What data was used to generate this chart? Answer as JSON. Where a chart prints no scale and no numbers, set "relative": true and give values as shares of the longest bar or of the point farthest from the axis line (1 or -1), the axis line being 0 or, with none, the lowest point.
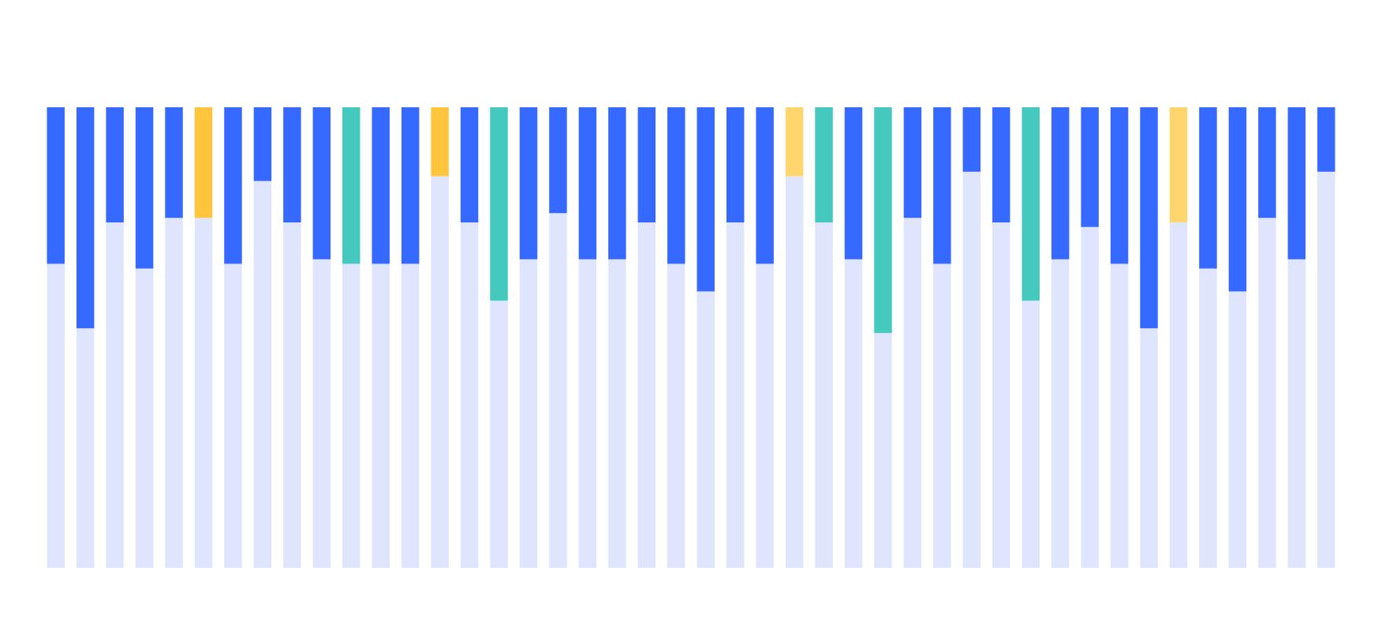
{
  "chart_data": {
    "type": "bar",
    "relative": true,
    "stacked": true,
    "grid": false,
    "categories": [
      null,
      null,
      null,
      null,
      null,
      null,
      null,
      null,
      null,
      null,
      null,
      null,
      null,
      null,
      null,
      null,
      null,
      null,
      null,
      null,
      null,
      null,
      null,
      null,
      null,
      null,
      null,
      null,
      null,
      null,
      null,
      null,
      null,
      null,
      null,
      null,
      null,
      null,
      null,
      null,
      null,
      null,
      null,
      null
    ],
    "series": [
      {
        "color": "#dfe5fd",
        "values": [
          0.66,
          0.52,
          0.75,
          0.65,
          0.76,
          0.76,
          0.66,
          0.84,
          0.75,
          0.67,
          0.66,
          0.66,
          0.66,
          0.85,
          0.75,
          0.58,
          0.67,
          0.77,
          0.67,
          0.67,
          0.75,
          0.66,
          0.6,
          0.75,
          0.66,
          0.85,
          0.75,
          0.67,
          0.51,
          0.76,
          0.66,
          0.86,
          0.75,
          0.58,
          0.67,
          0.74,
          0.66,
          0.52,
          0.75,
          0.65,
          0.6,
          0.76,
          0.67,
          0.86
        ]
      },
      {
        "colors": [
          "#3669ff",
          "#3669ff",
          "#3669ff",
          "#3669ff",
          "#3669ff",
          "#ffc53d",
          "#3669ff",
          "#3669ff",
          "#3669ff",
          "#3669ff",
          "#45c9bf",
          "#3669ff",
          "#3669ff",
          "#ffc53d",
          "#3669ff",
          "#45c9bf",
          "#3669ff",
          "#3669ff",
          "#3669ff",
          "#3669ff",
          "#3669ff",
          "#3669ff",
          "#3669ff",
          "#3669ff",
          "#3669ff",
          "#ffd56e",
          "#45c9bf",
          "#3669ff",
          "#45c9bf",
          "#3669ff",
          "#3669ff",
          "#3669ff",
          "#3669ff",
          "#45c9bf",
          "#3669ff",
          "#3669ff",
          "#3669ff",
          "#3669ff",
          "#ffd56e",
          "#3669ff",
          "#3669ff",
          "#3669ff",
          "#3669ff",
          "#3669ff"
        ],
        "values": [
          0.34,
          0.48,
          0.25,
          0.35,
          0.24,
          0.24,
          0.34,
          0.16,
          0.25,
          0.33,
          0.34,
          0.34,
          0.34,
          0.15,
          0.25,
          0.42,
          0.33,
          0.23,
          0.33,
          0.33,
          0.25,
          0.34,
          0.4,
          0.25,
          0.34,
          0.15,
          0.25,
          0.33,
          0.49,
          0.24,
          0.34,
          0.14,
          0.25,
          0.42,
          0.33,
          0.26,
          0.34,
          0.48,
          0.25,
          0.35,
          0.4,
          0.24,
          0.33,
          0.14
        ]
      }
    ]
  }
}
